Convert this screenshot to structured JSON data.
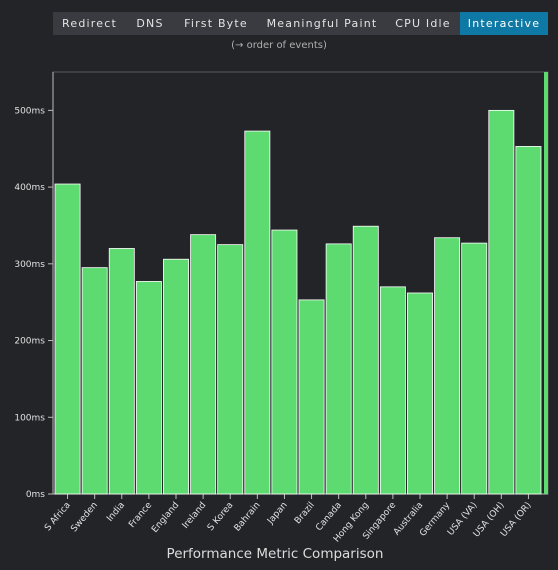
{
  "tabs": [
    {
      "label": "Redirect",
      "active": false
    },
    {
      "label": "DNS",
      "active": false
    },
    {
      "label": "First Byte",
      "active": false
    },
    {
      "label": "Meaningful Paint",
      "active": false
    },
    {
      "label": "CPU Idle",
      "active": false
    },
    {
      "label": "Interactive",
      "active": true
    }
  ],
  "subtitle": "(→ order of events)",
  "colors": {
    "bar": "#5ddb70",
    "accent": "#0f79a6"
  },
  "chart_data": {
    "type": "bar",
    "categories": [
      "S Africa",
      "Sweden",
      "India",
      "France",
      "England",
      "Ireland",
      "S Korea",
      "Bahrain",
      "Japan",
      "Brazil",
      "Canada",
      "Hong Kong",
      "Singapore",
      "Australia",
      "Germany",
      "USA (VA)",
      "USA (OH)",
      "USA (OR)"
    ],
    "values": [
      404,
      295,
      320,
      277,
      306,
      338,
      325,
      473,
      344,
      253,
      326,
      349,
      270,
      262,
      334,
      327,
      500,
      453
    ],
    "xlabel": "Performance Metric Comparison",
    "ylabel": "",
    "ylim": [
      0,
      550
    ],
    "yticks": [
      0,
      100,
      200,
      300,
      400,
      500
    ],
    "ytick_labels": [
      "0ms",
      "100ms",
      "200ms",
      "300ms",
      "400ms",
      "500ms"
    ],
    "grid": false
  }
}
